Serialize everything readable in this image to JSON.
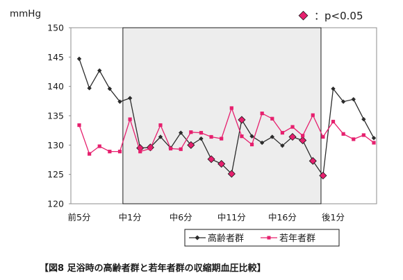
{
  "chart_data": {
    "type": "line",
    "title": "",
    "ylabel": "mmHg",
    "xlabel": "",
    "ylim": [
      120,
      150
    ],
    "yticks": [
      "120",
      "125",
      "130",
      "135",
      "140",
      "145",
      "150"
    ],
    "x_tick_labels": [
      {
        "index": 0,
        "label": "前5分"
      },
      {
        "index": 5,
        "label": "中1分"
      },
      {
        "index": 10,
        "label": "中6分"
      },
      {
        "index": 15,
        "label": "中11分"
      },
      {
        "index": 20,
        "label": "中16分"
      },
      {
        "index": 25,
        "label": "後1分"
      }
    ],
    "x_count": 30,
    "grid": false,
    "legend_position": "bottom-right",
    "shaded_region": {
      "from_index": 4.3,
      "to_index": 23.8,
      "color": "#ededed"
    },
    "significance_marker": {
      "symbol": "◆",
      "text": "：p<0.05",
      "color": "#e6206e"
    },
    "series": [
      {
        "name": "高齢者群",
        "color": "#2b2b2b",
        "marker": "diamond",
        "values": [
          144.7,
          139.7,
          142.7,
          139.6,
          137.4,
          138,
          129.5,
          129.6,
          131.4,
          129.5,
          132.1,
          130,
          131.1,
          127.6,
          126.8,
          125.1,
          134.3,
          131.5,
          130.4,
          131.4,
          129.9,
          131.4,
          130.8,
          127.3,
          124.8,
          139.6,
          137.4,
          137.8,
          134.4,
          131.2
        ],
        "significant_indices": [
          6,
          7,
          11,
          13,
          14,
          15,
          16,
          21,
          22,
          23,
          24
        ]
      },
      {
        "name": "若年者群",
        "color": "#e6206e",
        "marker": "square",
        "values": [
          133.4,
          128.5,
          129.8,
          128.9,
          128.9,
          134.4,
          128.9,
          129.4,
          133.4,
          129.4,
          129.3,
          132.2,
          132.1,
          131.4,
          131.1,
          136.3,
          131.5,
          130.1,
          135.4,
          134.5,
          132.1,
          133.1,
          131.6,
          135.1,
          131.4,
          134,
          131.9,
          131,
          131.7,
          130.4
        ]
      }
    ]
  },
  "caption": "【図8  足浴時の高齢者群と若年者群の収縮期血圧比較】"
}
